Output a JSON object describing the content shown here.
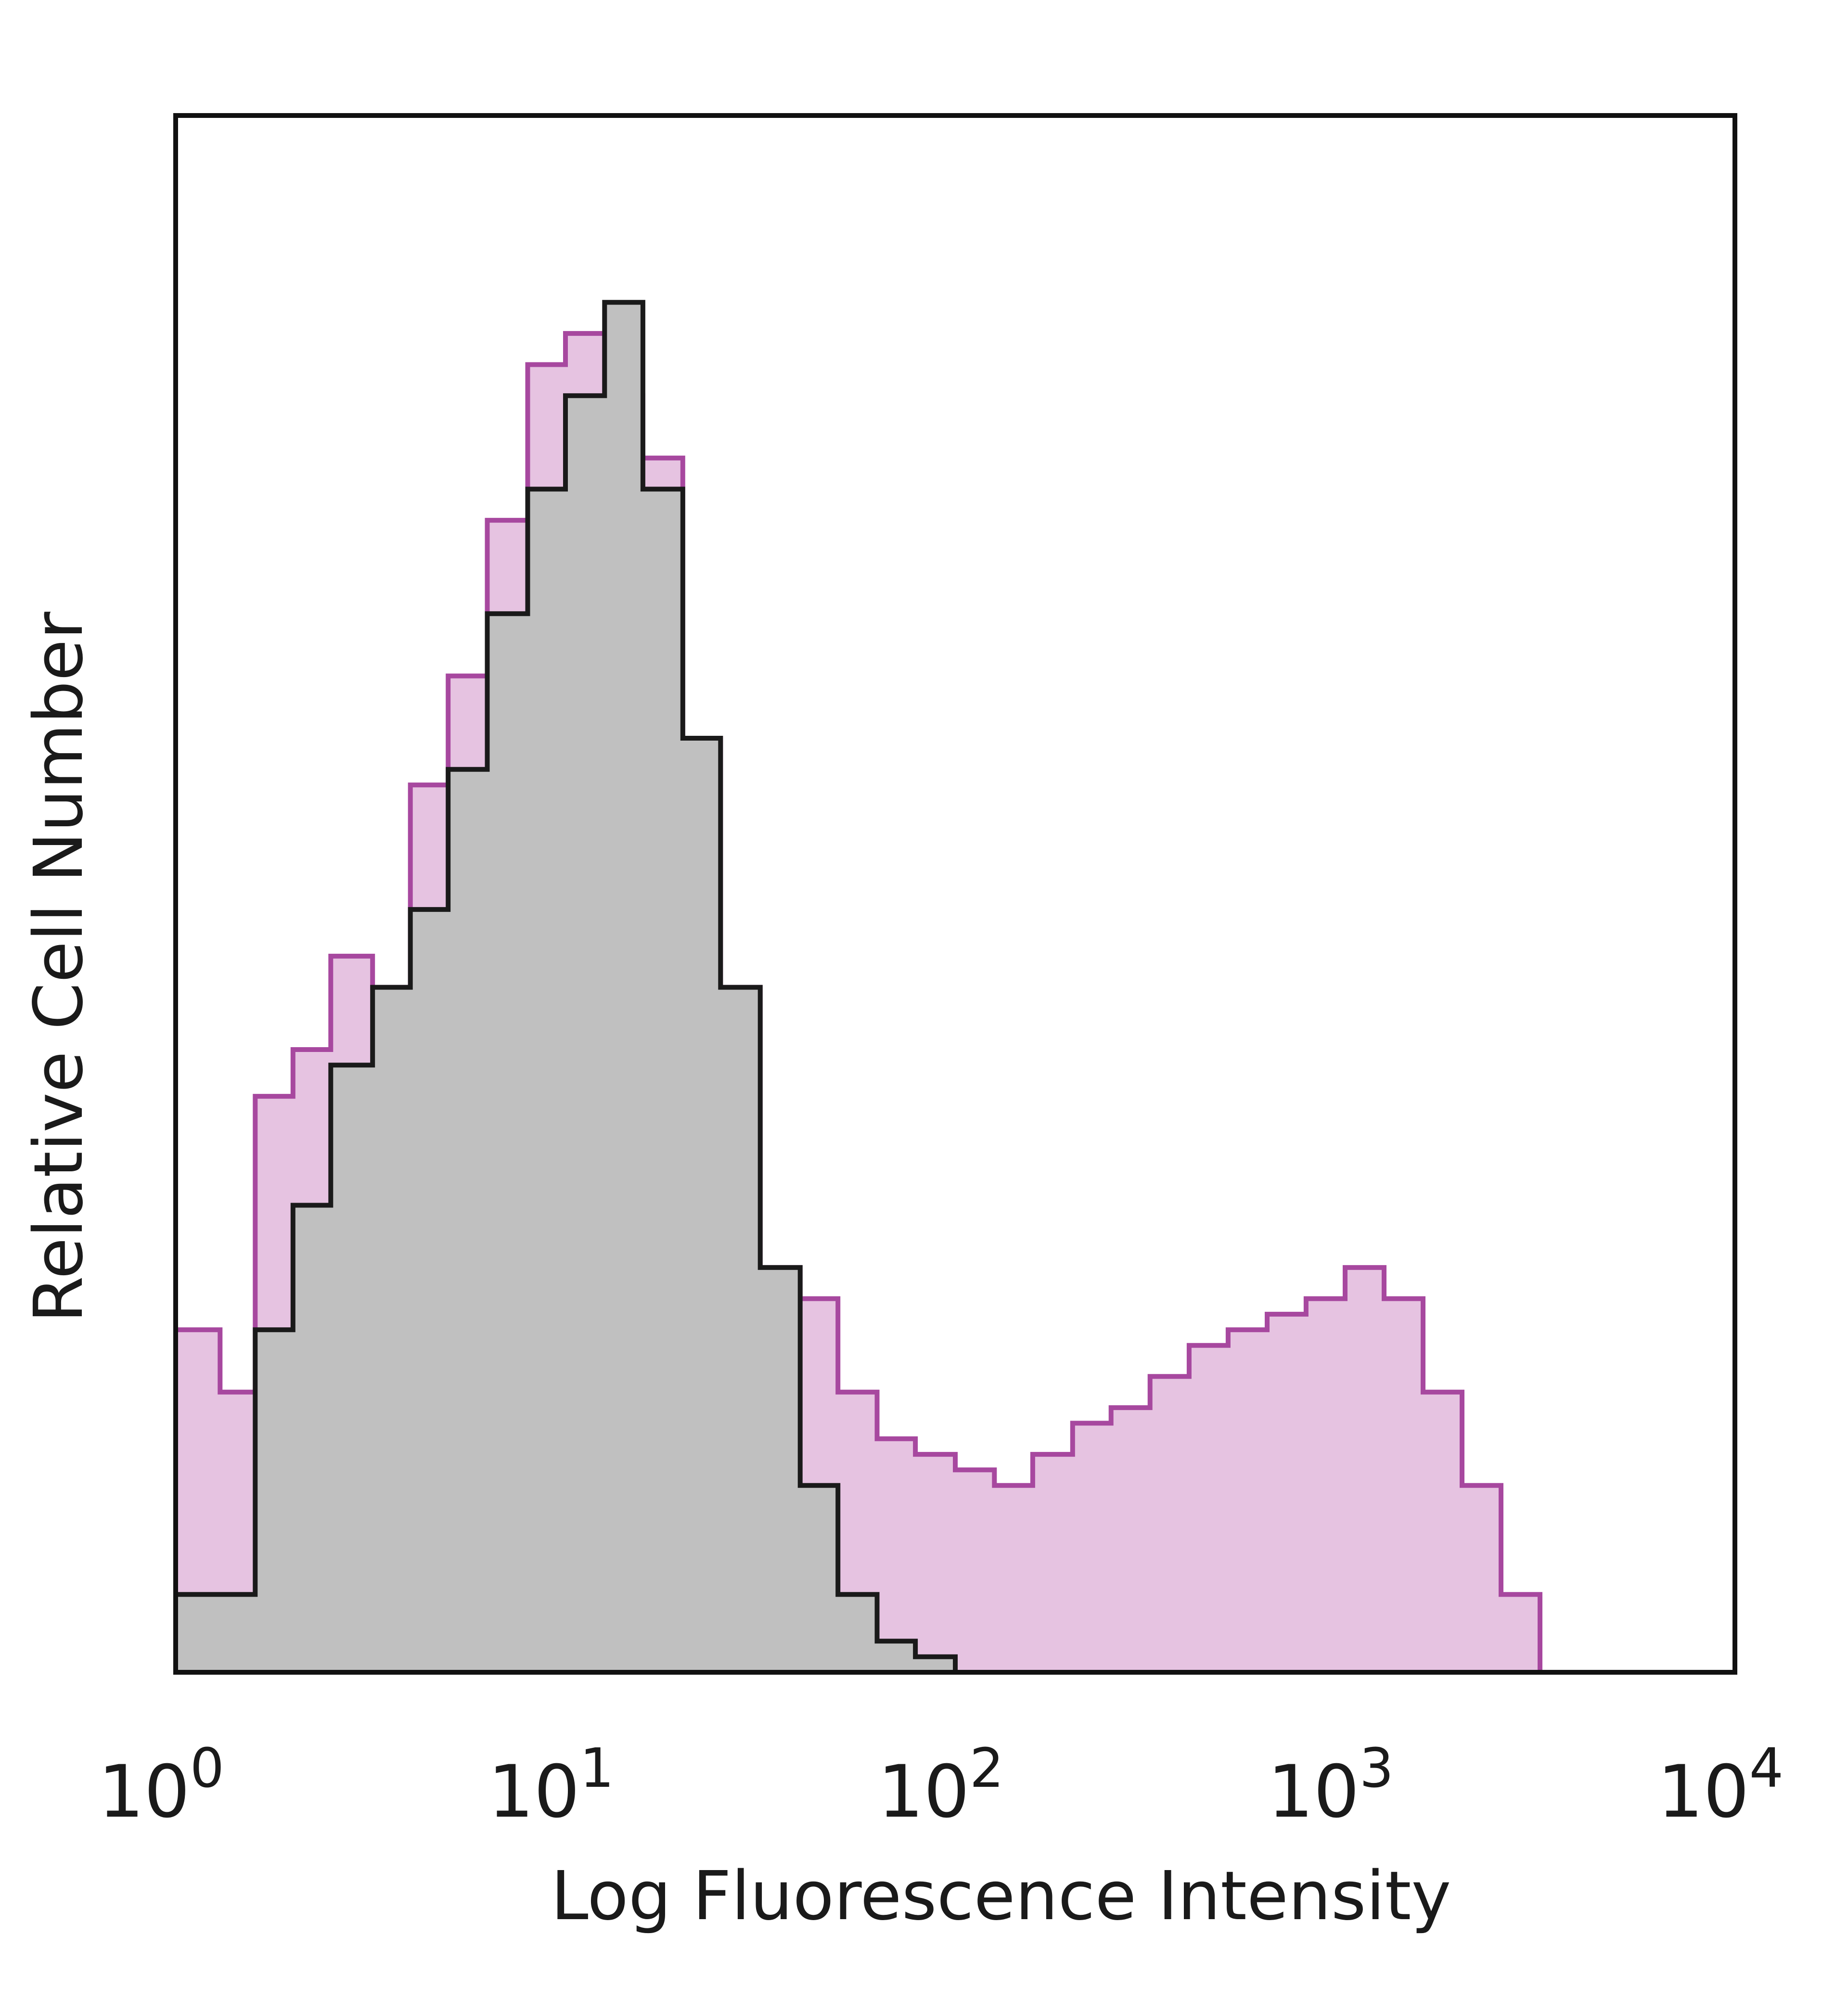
{
  "chart_data": {
    "type": "area",
    "title": "",
    "xlabel": "Log Fluorescence Intensity",
    "ylabel": "Relative Cell Number",
    "x_scale": "log",
    "xlim": [
      1,
      10000
    ],
    "ylim": [
      0,
      1.0
    ],
    "grid": false,
    "legend": "none",
    "xticks": [
      {
        "base": "10",
        "exp": "0"
      },
      {
        "base": "10",
        "exp": "1"
      },
      {
        "base": "10",
        "exp": "2"
      },
      {
        "base": "10",
        "exp": "3"
      },
      {
        "base": "10",
        "exp": "4"
      }
    ],
    "series": [
      {
        "style": "filled histogram",
        "fill": "#c0c0c0",
        "stroke": "#1a1a1a",
        "x": [
          1,
          1.3,
          1.6,
          2.0,
          2.5,
          3.2,
          4.0,
          5.0,
          6.3,
          8.0,
          10,
          12.6,
          15.8,
          20,
          25,
          31.6,
          40,
          50,
          63,
          79,
          100,
          200,
          500,
          1000,
          2000,
          5000,
          10000
        ],
        "values": [
          0.05,
          0.05,
          0.22,
          0.3,
          0.39,
          0.44,
          0.49,
          0.58,
          0.68,
          0.76,
          0.82,
          0.88,
          0.76,
          0.6,
          0.44,
          0.26,
          0.12,
          0.05,
          0.02,
          0.01,
          0.0,
          0.0,
          0.0,
          0.0,
          0.0,
          0.0,
          0.0
        ]
      },
      {
        "style": "filled histogram",
        "fill": "#e2b8dc",
        "stroke": "#a7489f",
        "x": [
          1,
          1.3,
          1.6,
          2.0,
          2.5,
          3.2,
          4.0,
          5.0,
          6.3,
          8.0,
          10,
          12.6,
          15.8,
          20,
          25,
          31.6,
          40,
          50,
          63,
          79,
          100,
          126,
          158,
          200,
          251,
          316,
          398,
          501,
          631,
          794,
          1000,
          1259,
          1585,
          1995,
          2512,
          3162,
          10000
        ],
        "values": [
          0.22,
          0.18,
          0.37,
          0.4,
          0.46,
          0.44,
          0.57,
          0.64,
          0.74,
          0.84,
          0.86,
          0.82,
          0.78,
          0.6,
          0.44,
          0.26,
          0.24,
          0.18,
          0.15,
          0.14,
          0.13,
          0.12,
          0.14,
          0.16,
          0.17,
          0.19,
          0.21,
          0.22,
          0.23,
          0.24,
          0.26,
          0.24,
          0.18,
          0.12,
          0.05,
          0.0,
          0.0
        ]
      }
    ]
  }
}
